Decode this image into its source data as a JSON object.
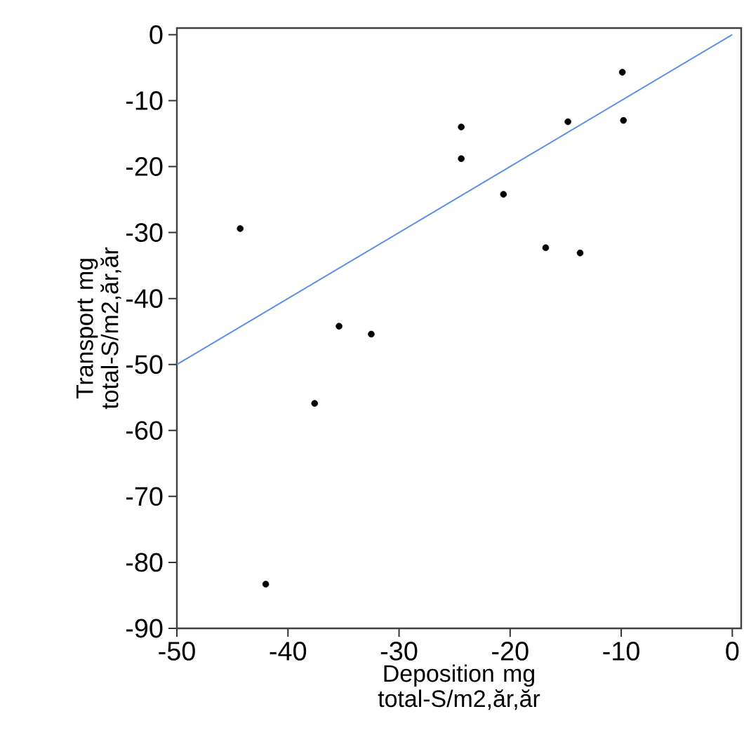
{
  "chart_data": {
    "type": "scatter",
    "xlabel": "Deposition mg total-S/m2,ăr,ăr",
    "ylabel": "Transport mg total-S/m2,ăr,ăr",
    "xlim": [
      -50,
      0.8
    ],
    "ylim": [
      -90,
      1
    ],
    "xticks": [
      -50,
      -40,
      -30,
      -20,
      -10,
      0
    ],
    "yticks": [
      0,
      -10,
      -20,
      -30,
      -40,
      -50,
      -60,
      -70,
      -80,
      -90
    ],
    "grid": false,
    "marker": "circle",
    "series": [
      {
        "color": "#000000",
        "x": [
          -44.3,
          -42.0,
          -37.6,
          -35.4,
          -32.5,
          -24.4,
          -24.4,
          -20.6,
          -16.8,
          -14.8,
          -13.7,
          -9.9,
          -9.8
        ],
        "values": [
          -29.4,
          -83.3,
          -55.9,
          -44.2,
          -45.4,
          -14.0,
          -18.8,
          -24.2,
          -32.3,
          -13.2,
          -33.1,
          -5.7,
          -13.0
        ]
      },
      {
        "type": "line",
        "color": "#5b8ee6",
        "marker": "none",
        "line_style": "solid",
        "x": [
          -50,
          0
        ],
        "values": [
          -50,
          0
        ]
      }
    ]
  }
}
